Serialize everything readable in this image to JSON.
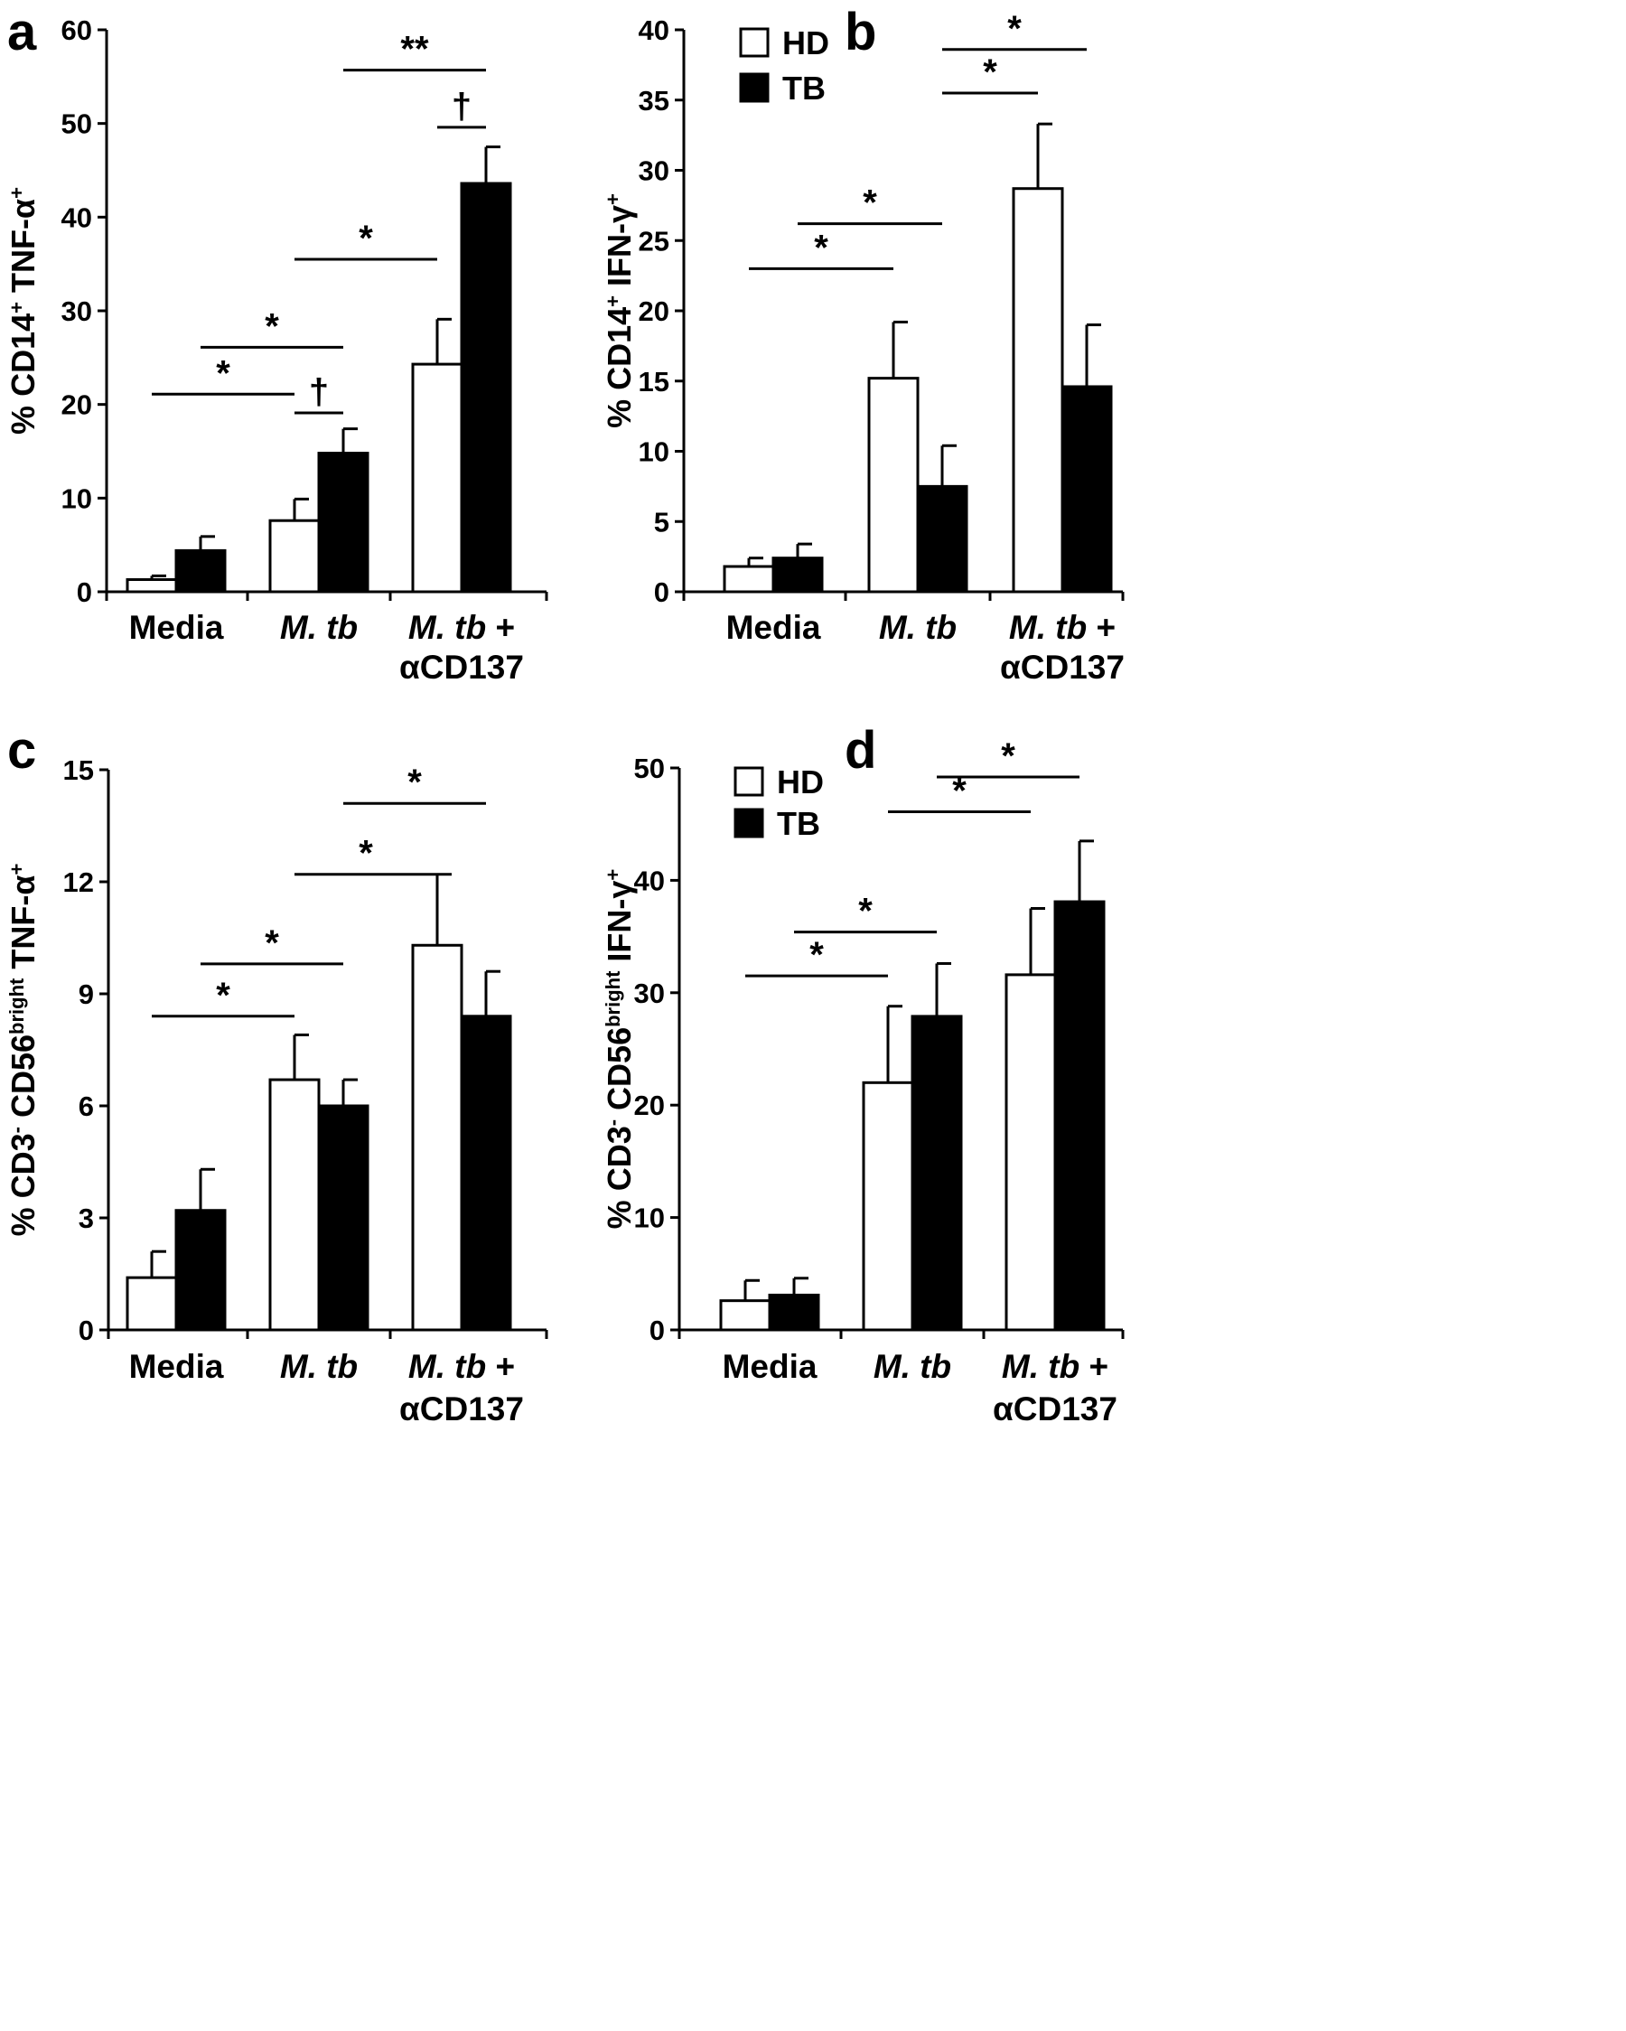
{
  "chart_data": [
    {
      "panel": "a",
      "type": "bar",
      "ylabel": "% CD14+ TNF-α+",
      "ylabel_parts": [
        {
          "t": "% CD14"
        },
        {
          "t": "+",
          "sup": true
        },
        {
          "t": " TNF-α"
        },
        {
          "t": "+",
          "sup": true
        }
      ],
      "ylim": [
        0,
        60
      ],
      "yticks": [
        "0",
        "10",
        "20",
        "30",
        "40",
        "50",
        "60"
      ],
      "categories": [
        {
          "lines": [
            {
              "parts": [
                {
                  "t": "Media"
                }
              ]
            }
          ]
        },
        {
          "lines": [
            {
              "parts": [
                {
                  "t": "M. tb",
                  "i": true
                }
              ]
            }
          ]
        },
        {
          "lines": [
            {
              "parts": [
                {
                  "t": "M. tb",
                  "i": true
                },
                {
                  "t": " +"
                }
              ]
            },
            {
              "parts": [
                {
                  "t": "αCD137"
                }
              ]
            }
          ]
        }
      ],
      "series": [
        {
          "key": "HD",
          "color": "#ffffff",
          "values": [
            1.3,
            7.6,
            24.3
          ],
          "errors": [
            0.4,
            2.3,
            4.8
          ]
        },
        {
          "key": "TB",
          "color": "#000000",
          "values": [
            4.4,
            14.8,
            43.6
          ],
          "errors": [
            1.5,
            2.6,
            3.9
          ]
        }
      ],
      "annotations": [
        {
          "label": "*",
          "level": 21.1,
          "from": "0.HD",
          "to": "1.HD"
        },
        {
          "label": "*",
          "level": 26.1,
          "from": "0.TB",
          "to": "1.TB"
        },
        {
          "label": "†",
          "level": 19.1,
          "from": "1.HD",
          "to": "1.TB"
        },
        {
          "label": "*",
          "level": 35.5,
          "from": "1.HD",
          "to": "2.HD"
        },
        {
          "label": "†",
          "level": 49.6,
          "from": "2.HD",
          "to": "2.TB"
        },
        {
          "label": "**",
          "level": 55.7,
          "from": "1.TB",
          "to": "2.TB"
        }
      ]
    },
    {
      "panel": "b",
      "type": "bar",
      "ylabel": "% CD14+ IFN-γ+",
      "ylabel_parts": [
        {
          "t": "% CD14"
        },
        {
          "t": "+",
          "sup": true
        },
        {
          "t": " IFN-γ"
        },
        {
          "t": "+",
          "sup": true
        }
      ],
      "ylim": [
        0,
        40
      ],
      "yticks": [
        "0",
        "5",
        "10",
        "15",
        "20",
        "25",
        "30",
        "35",
        "40"
      ],
      "categories": [
        {
          "lines": [
            {
              "parts": [
                {
                  "t": "Media"
                }
              ]
            }
          ]
        },
        {
          "lines": [
            {
              "parts": [
                {
                  "t": "M. tb",
                  "i": true
                }
              ]
            }
          ]
        },
        {
          "lines": [
            {
              "parts": [
                {
                  "t": "M. tb",
                  "i": true
                },
                {
                  "t": " +"
                }
              ]
            },
            {
              "parts": [
                {
                  "t": "αCD137"
                }
              ]
            }
          ]
        }
      ],
      "legend": [
        {
          "label": "HD",
          "color": "#ffffff"
        },
        {
          "label": "TB",
          "color": "#000000"
        }
      ],
      "series": [
        {
          "key": "HD",
          "color": "#ffffff",
          "values": [
            1.8,
            15.2,
            28.7
          ],
          "errors": [
            0.6,
            4.0,
            4.6
          ]
        },
        {
          "key": "TB",
          "color": "#000000",
          "values": [
            2.4,
            7.5,
            14.6
          ],
          "errors": [
            1.0,
            2.9,
            4.4
          ]
        }
      ],
      "annotations": [
        {
          "label": "*",
          "level": 23.0,
          "from": "0.HD",
          "to": "1.HD"
        },
        {
          "label": "*",
          "level": 26.2,
          "from": "0.TB",
          "to": "1.TB"
        },
        {
          "label": "*",
          "level": 35.5,
          "from": "1.TB",
          "to": "2.HD"
        },
        {
          "label": "*",
          "level": 38.6,
          "from": "1.TB",
          "to": "2.TB"
        }
      ]
    },
    {
      "panel": "c",
      "type": "bar",
      "ylabel": "% CD3- CD56bright TNF-α+",
      "ylabel_parts": [
        {
          "t": "% CD3"
        },
        {
          "t": "-",
          "sup": true
        },
        {
          "t": " CD56"
        },
        {
          "t": "bright",
          "sup": true
        },
        {
          "t": " TNF-α"
        },
        {
          "t": "+",
          "sup": true
        }
      ],
      "ylim": [
        0,
        15
      ],
      "yticks": [
        "0",
        "3",
        "6",
        "9",
        "12",
        "15"
      ],
      "categories": [
        {
          "lines": [
            {
              "parts": [
                {
                  "t": "Media"
                }
              ]
            }
          ]
        },
        {
          "lines": [
            {
              "parts": [
                {
                  "t": "M. tb",
                  "i": true
                }
              ]
            }
          ]
        },
        {
          "lines": [
            {
              "parts": [
                {
                  "t": "M. tb",
                  "i": true
                },
                {
                  "t": " +"
                }
              ]
            },
            {
              "parts": [
                {
                  "t": "αCD137"
                }
              ]
            }
          ]
        }
      ],
      "series": [
        {
          "key": "HD",
          "color": "#ffffff",
          "values": [
            1.4,
            6.7,
            10.3
          ],
          "errors": [
            0.7,
            1.2,
            1.9
          ]
        },
        {
          "key": "TB",
          "color": "#000000",
          "values": [
            3.2,
            6.0,
            8.4
          ],
          "errors": [
            1.1,
            0.7,
            1.2
          ]
        }
      ],
      "annotations": [
        {
          "label": "*",
          "level": 8.4,
          "from": "0.HD",
          "to": "1.HD"
        },
        {
          "label": "*",
          "level": 9.8,
          "from": "0.TB",
          "to": "1.TB"
        },
        {
          "label": "*",
          "level": 12.2,
          "from": "1.HD",
          "to": "2.HD"
        },
        {
          "label": "*",
          "level": 14.1,
          "from": "1.TB",
          "to": "2.TB"
        }
      ]
    },
    {
      "panel": "d",
      "type": "bar",
      "ylabel": "% CD3- CD56bright IFN-γ+",
      "ylabel_parts": [
        {
          "t": "% CD3"
        },
        {
          "t": "-",
          "sup": true
        },
        {
          "t": " CD56"
        },
        {
          "t": "bright",
          "sup": true
        },
        {
          "t": " IFN-γ"
        },
        {
          "t": "+",
          "sup": true
        }
      ],
      "ylim": [
        0,
        50
      ],
      "yticks": [
        "0",
        "10",
        "20",
        "30",
        "40",
        "50"
      ],
      "categories": [
        {
          "lines": [
            {
              "parts": [
                {
                  "t": "Media"
                }
              ]
            }
          ]
        },
        {
          "lines": [
            {
              "parts": [
                {
                  "t": "M. tb",
                  "i": true
                }
              ]
            }
          ]
        },
        {
          "lines": [
            {
              "parts": [
                {
                  "t": "M. tb",
                  "i": true
                },
                {
                  "t": " +"
                }
              ]
            },
            {
              "parts": [
                {
                  "t": "αCD137"
                }
              ]
            }
          ]
        }
      ],
      "legend": [
        {
          "label": "HD",
          "color": "#ffffff"
        },
        {
          "label": "TB",
          "color": "#000000"
        }
      ],
      "series": [
        {
          "key": "HD",
          "color": "#ffffff",
          "values": [
            2.6,
            22.0,
            31.6
          ],
          "errors": [
            1.8,
            6.8,
            5.9
          ]
        },
        {
          "key": "TB",
          "color": "#000000",
          "values": [
            3.1,
            27.9,
            38.1
          ],
          "errors": [
            1.5,
            4.7,
            5.4
          ]
        }
      ],
      "annotations": [
        {
          "label": "*",
          "level": 31.5,
          "from": "0.HD",
          "to": "1.HD"
        },
        {
          "label": "*",
          "level": 35.4,
          "from": "0.TB",
          "to": "1.TB"
        },
        {
          "label": "*",
          "level": 46.1,
          "from": "1.HD",
          "to": "2.HD"
        },
        {
          "label": "*",
          "level": 49.2,
          "from": "1.TB",
          "to": "2.TB"
        }
      ]
    }
  ]
}
